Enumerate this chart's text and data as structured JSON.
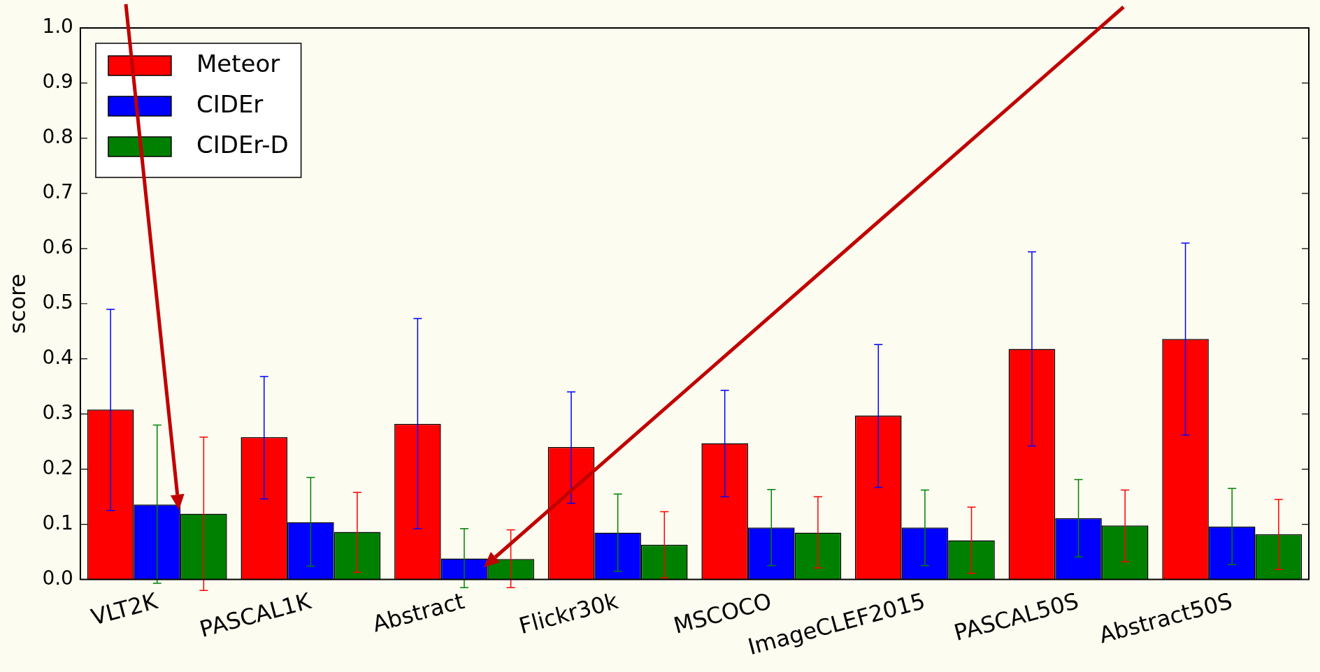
{
  "chart_data": {
    "type": "bar",
    "ylabel": "score",
    "categories": [
      "VLT2K",
      "PASCAL1K",
      "Abstract",
      "Flickr30k",
      "MSCOCO",
      "ImageCLEF2015",
      "PASCAL50S",
      "Abstract50S"
    ],
    "series": [
      {
        "name": "Meteor",
        "color": "#ff0000",
        "values": [
          0.308,
          0.258,
          0.282,
          0.24,
          0.247,
          0.297,
          0.418,
          0.436
        ],
        "errors": [
          [
            0.125,
            0.49
          ],
          [
            0.146,
            0.368
          ],
          [
            0.092,
            0.473
          ],
          [
            0.138,
            0.34
          ],
          [
            0.15,
            0.343
          ],
          [
            0.167,
            0.426
          ],
          [
            0.242,
            0.594
          ],
          [
            0.262,
            0.61
          ]
        ]
      },
      {
        "name": "CIDEr",
        "color": "#0000ff",
        "values": [
          0.136,
          0.104,
          0.038,
          0.085,
          0.094,
          0.094,
          0.111,
          0.096
        ],
        "errors": [
          [
            -0.007,
            0.28
          ],
          [
            0.024,
            0.185
          ],
          [
            -0.015,
            0.092
          ],
          [
            0.015,
            0.155
          ],
          [
            0.025,
            0.163
          ],
          [
            0.025,
            0.162
          ],
          [
            0.041,
            0.181
          ],
          [
            0.027,
            0.165
          ]
        ]
      },
      {
        "name": "CIDEr-D",
        "color": "#008000",
        "values": [
          0.119,
          0.086,
          0.037,
          0.063,
          0.085,
          0.071,
          0.098,
          0.082
        ],
        "errors": [
          [
            -0.02,
            0.258
          ],
          [
            0.013,
            0.158
          ],
          [
            -0.015,
            0.09
          ],
          [
            0.003,
            0.123
          ],
          [
            0.021,
            0.15
          ],
          [
            0.011,
            0.131
          ],
          [
            0.032,
            0.162
          ],
          [
            0.018,
            0.145
          ]
        ]
      }
    ],
    "ylim": [
      0,
      1
    ],
    "yticks": [
      {
        "value": 0,
        "label": "0.0"
      },
      {
        "value": 0.1,
        "label": "0.1"
      },
      {
        "value": 0.2,
        "label": "0.2"
      },
      {
        "value": 0.3,
        "label": "0.3"
      },
      {
        "value": 0.4,
        "label": "0.4"
      },
      {
        "value": 0.5,
        "label": "0.5"
      },
      {
        "value": 0.6,
        "label": "0.6"
      },
      {
        "value": 0.7,
        "label": "0.7"
      },
      {
        "value": 0.8,
        "label": "0.8"
      },
      {
        "value": 0.9,
        "label": "0.9"
      },
      {
        "value": 1,
        "label": "1.0"
      }
    ],
    "legend": "top left",
    "grid": false
  }
}
